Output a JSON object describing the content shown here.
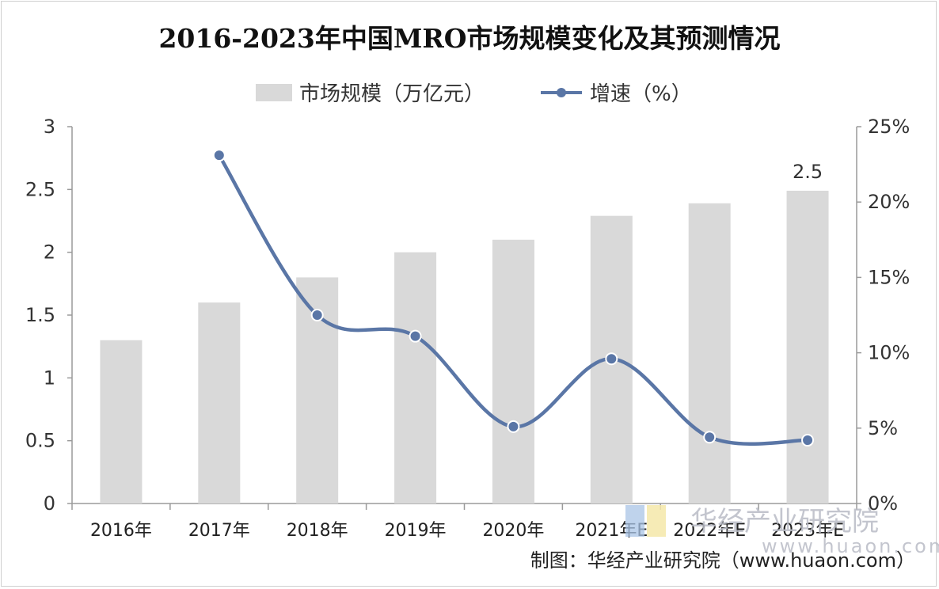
{
  "chart_data": {
    "type": "bar",
    "title": "2016-2023年中国MRO市场规模变化及其预测情况",
    "categories": [
      "2016年",
      "2017年",
      "2018年",
      "2019年",
      "2020年",
      "2021年E",
      "2022年E",
      "2023年E"
    ],
    "series": [
      {
        "name": "市场规模（万亿元）",
        "type": "bar",
        "axis": "left",
        "color": "#d9d9d9",
        "values": [
          1.3,
          1.6,
          1.8,
          2.0,
          2.1,
          2.29,
          2.39,
          2.49
        ]
      },
      {
        "name": "增速（%）",
        "type": "line",
        "axis": "right",
        "color": "#5a76a6",
        "smooth": true,
        "values": [
          null,
          23.1,
          12.5,
          11.1,
          5.1,
          9.6,
          4.4,
          4.2
        ]
      }
    ],
    "y_left": {
      "min": 0,
      "max": 3,
      "ticks": [
        "0",
        "0.5",
        "1",
        "1.5",
        "2",
        "2.5",
        "3"
      ]
    },
    "y_right": {
      "min": 0,
      "max": 25,
      "ticks": [
        "0%",
        "5%",
        "10%",
        "15%",
        "20%",
        "25%"
      ]
    },
    "data_labels": [
      {
        "category": "2023年E",
        "text": "2.5"
      }
    ],
    "legend_position": "top-center",
    "grid": false
  },
  "source": "制图：华经产业研究院（www.huaon.com）",
  "watermark": {
    "name": "华经产业研究院",
    "url": "www.huaon.com"
  }
}
